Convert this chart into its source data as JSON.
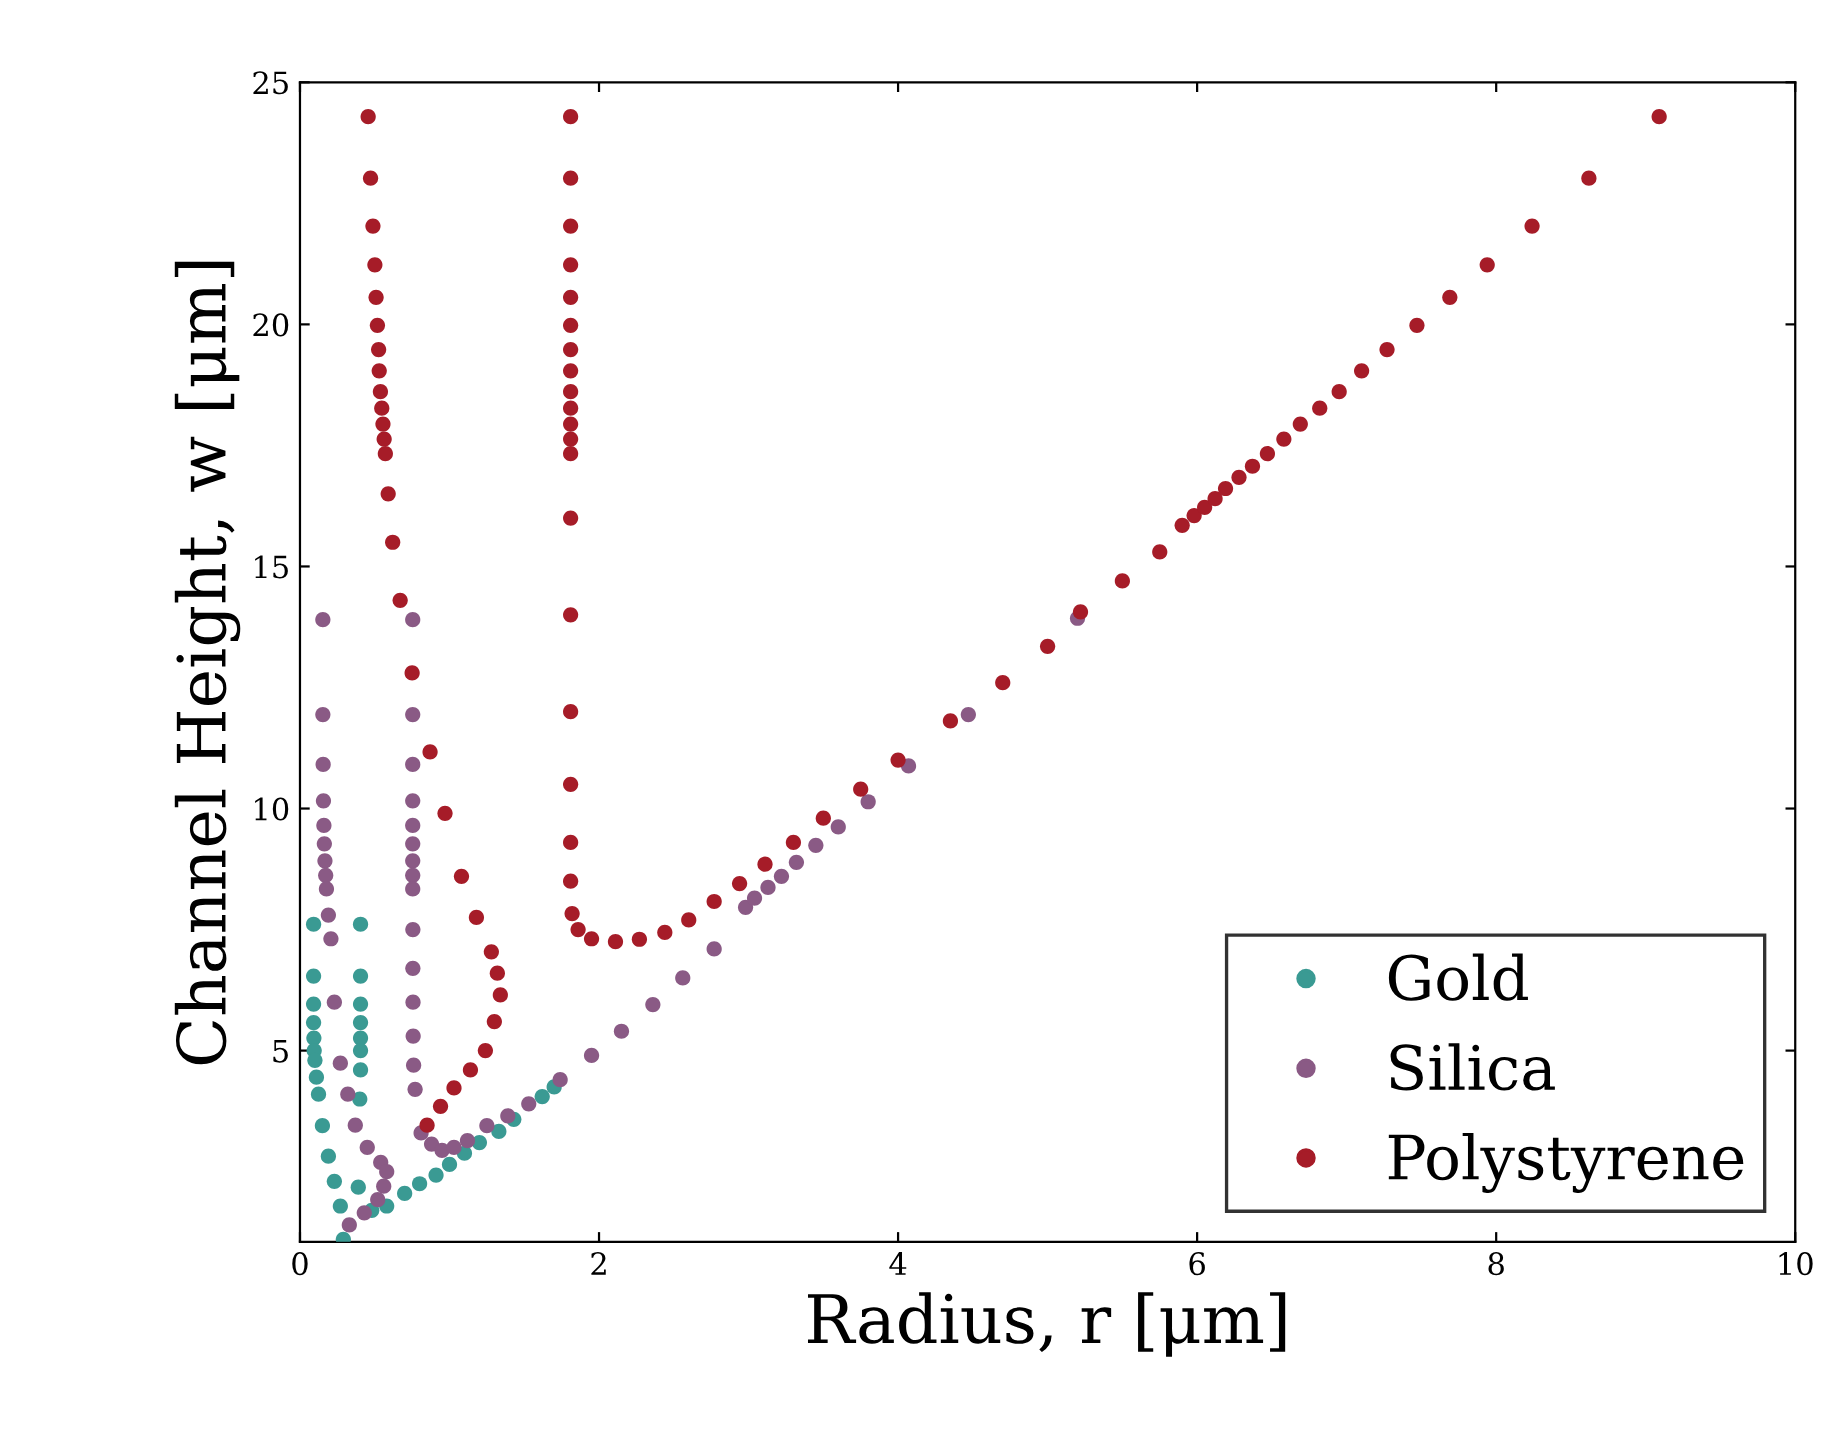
{
  "chart_data": {
    "type": "scatter",
    "xlabel": "Radius, r [μm]",
    "ylabel": "Channel Height, w [μm]",
    "xlim": [
      0,
      10
    ],
    "ylim": [
      1.05,
      25
    ],
    "xticks": [
      0,
      2,
      4,
      6,
      8,
      10
    ],
    "yticks": [
      5,
      10,
      15,
      20,
      25
    ],
    "grid": false,
    "legend": "bottom right",
    "marker": "circle",
    "series": [
      {
        "name": "Gold",
        "color": "#3a9a93",
        "x": [
          0.091,
          0.091,
          0.091,
          0.091,
          0.093,
          0.095,
          0.1,
          0.11,
          0.124,
          0.15,
          0.19,
          0.23,
          0.27,
          0.29,
          0.405,
          0.405,
          0.405,
          0.405,
          0.405,
          0.405,
          0.405,
          0.4,
          0.39,
          0.48,
          0.58,
          0.7,
          0.8,
          0.91,
          1.0,
          1.1,
          1.2,
          1.33,
          1.43,
          1.62,
          1.7
        ],
        "values": [
          7.61,
          6.54,
          5.96,
          5.58,
          5.26,
          5.0,
          4.8,
          4.45,
          4.1,
          3.45,
          2.82,
          2.3,
          1.79,
          1.1,
          7.61,
          6.54,
          5.96,
          5.58,
          5.26,
          5.0,
          4.6,
          4.0,
          2.18,
          1.7,
          1.79,
          2.05,
          2.25,
          2.43,
          2.65,
          2.88,
          3.1,
          3.33,
          3.58,
          4.05,
          4.25
        ]
      },
      {
        "name": "Silica",
        "color": "#8a5a85",
        "x": [
          0.153,
          0.153,
          0.155,
          0.157,
          0.16,
          0.163,
          0.167,
          0.172,
          0.177,
          0.19,
          0.207,
          0.23,
          0.27,
          0.32,
          0.37,
          0.45,
          0.54,
          0.58,
          0.56,
          0.52,
          0.43,
          0.33,
          0.754,
          0.754,
          0.754,
          0.754,
          0.754,
          0.754,
          0.754,
          0.754,
          0.754,
          0.755,
          0.755,
          0.756,
          0.757,
          0.76,
          0.77,
          0.81,
          0.88,
          0.95,
          1.03,
          1.12,
          1.25,
          1.39,
          1.53,
          1.74,
          1.95,
          2.15,
          2.36,
          2.56,
          2.77,
          2.98,
          3.04,
          3.13,
          3.22,
          3.32,
          3.45,
          3.6,
          3.8,
          4.07,
          4.47,
          5.2
        ],
        "values": [
          13.9,
          11.94,
          10.91,
          10.16,
          9.65,
          9.27,
          8.92,
          8.62,
          8.34,
          7.8,
          7.31,
          6.0,
          4.74,
          4.1,
          3.46,
          3.0,
          2.69,
          2.5,
          2.2,
          1.92,
          1.65,
          1.4,
          13.9,
          11.94,
          10.91,
          10.16,
          9.65,
          9.27,
          8.92,
          8.62,
          8.34,
          7.5,
          6.7,
          6.0,
          5.3,
          4.7,
          4.2,
          3.3,
          3.07,
          2.94,
          3.0,
          3.14,
          3.45,
          3.65,
          3.9,
          4.4,
          4.9,
          5.4,
          5.95,
          6.5,
          7.1,
          7.96,
          8.15,
          8.37,
          8.6,
          8.89,
          9.24,
          9.62,
          10.14,
          10.88,
          11.94,
          13.93
        ]
      },
      {
        "name": "Polystyrene",
        "color": "#a61c28",
        "x": [
          0.456,
          0.472,
          0.488,
          0.501,
          0.509,
          0.518,
          0.526,
          0.53,
          0.538,
          0.547,
          0.555,
          0.563,
          0.571,
          0.59,
          0.62,
          0.67,
          0.75,
          0.87,
          0.97,
          1.08,
          1.18,
          1.28,
          1.32,
          1.34,
          1.3,
          1.24,
          1.14,
          1.03,
          0.94,
          0.85,
          1.81,
          1.81,
          1.81,
          1.81,
          1.81,
          1.81,
          1.81,
          1.81,
          1.81,
          1.81,
          1.81,
          1.81,
          1.81,
          1.81,
          1.81,
          1.81,
          1.81,
          1.81,
          1.81,
          1.82,
          1.86,
          1.95,
          2.11,
          2.27,
          2.44,
          2.6,
          2.77,
          2.94,
          3.11,
          3.3,
          3.5,
          3.75,
          4.0,
          4.35,
          4.7,
          5.0,
          5.22,
          5.5,
          5.75,
          5.9,
          5.98,
          6.05,
          6.12,
          6.19,
          6.28,
          6.37,
          6.47,
          6.58,
          6.69,
          6.82,
          6.95,
          7.1,
          7.27,
          7.47,
          7.69,
          7.94,
          8.24,
          8.62,
          9.09
        ],
        "values": [
          24.29,
          23.02,
          22.03,
          21.23,
          20.56,
          19.98,
          19.48,
          19.04,
          18.61,
          18.27,
          17.94,
          17.63,
          17.33,
          16.5,
          15.5,
          14.3,
          12.8,
          11.17,
          9.9,
          8.6,
          7.75,
          7.04,
          6.6,
          6.15,
          5.6,
          5.0,
          4.6,
          4.23,
          3.85,
          3.46,
          24.29,
          23.02,
          22.03,
          21.23,
          20.56,
          19.98,
          19.48,
          19.04,
          18.61,
          18.27,
          17.94,
          17.63,
          17.33,
          16.0,
          14.0,
          12.0,
          10.5,
          9.3,
          8.5,
          7.83,
          7.5,
          7.31,
          7.25,
          7.3,
          7.44,
          7.7,
          8.08,
          8.45,
          8.85,
          9.3,
          9.8,
          10.4,
          11.0,
          11.81,
          12.6,
          13.35,
          14.06,
          14.7,
          15.3,
          15.85,
          16.05,
          16.22,
          16.4,
          16.61,
          16.84,
          17.07,
          17.33,
          17.63,
          17.94,
          18.27,
          18.61,
          19.04,
          19.48,
          19.98,
          20.56,
          21.23,
          22.03,
          23.02,
          24.29
        ]
      }
    ]
  }
}
